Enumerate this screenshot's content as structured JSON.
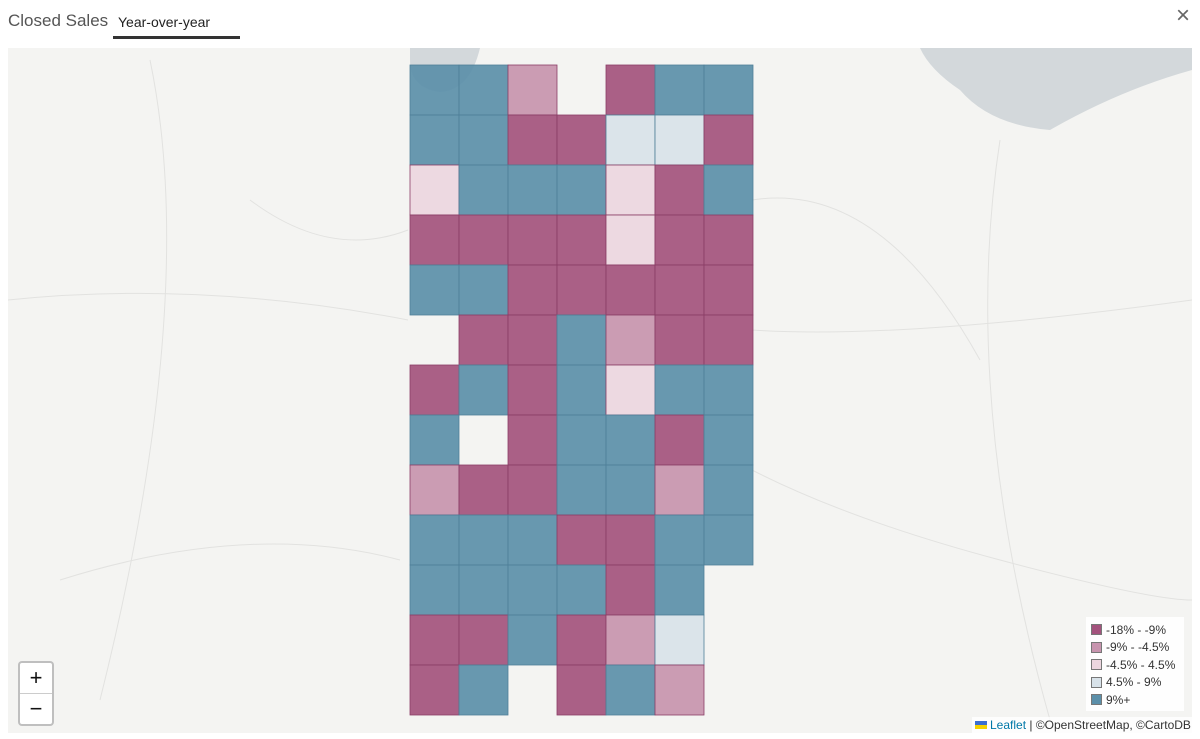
{
  "header": {
    "title": "Closed Sales",
    "tabs": [
      "Year-over-year"
    ],
    "close": "×"
  },
  "map": {
    "legend": [
      {
        "label": "-18% - -9%",
        "color": "#a3527d"
      },
      {
        "label": "-9% - -4.5%",
        "color": "#c794ae"
      },
      {
        "label": "-4.5% - 4.5%",
        "color": "#ecd6df"
      },
      {
        "label": "4.5% - 9%",
        "color": "#d8e2e9"
      },
      {
        "label": "9%+",
        "color": "#5b8fa9"
      }
    ],
    "zoom": [
      "+",
      "−"
    ],
    "attribution": {
      "link": "Leaflet",
      "text": "| ©OpenStreetMap, ©CartoDB"
    }
  }
}
